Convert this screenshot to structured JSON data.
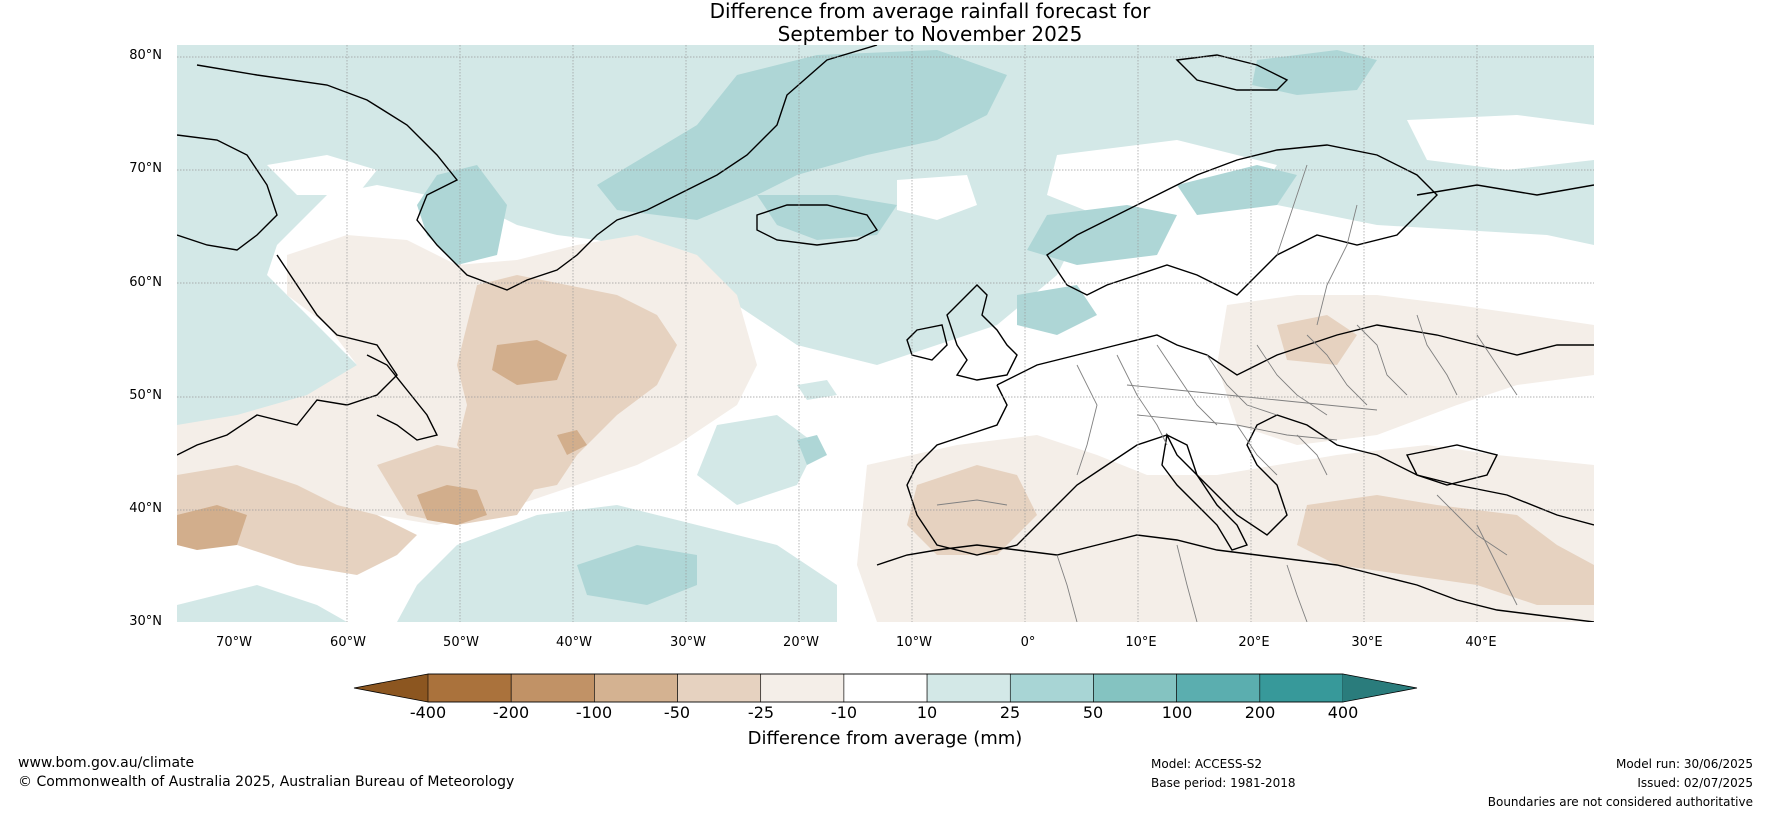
{
  "title": {
    "line1": "Difference from average rainfall forecast for",
    "line2": "September to November 2025"
  },
  "map": {
    "lat_labels": [
      "80°N",
      "70°N",
      "60°N",
      "50°N",
      "40°N",
      "30°N"
    ],
    "lon_labels": [
      "70°W",
      "60°W",
      "50°W",
      "40°W",
      "30°W",
      "20°W",
      "10°W",
      "0°",
      "10°E",
      "20°E",
      "30°E",
      "40°E"
    ],
    "colors": {
      "dry_strong": "#d2ae8c",
      "dry_moderate": "#e6d2c0",
      "dry_light": "#f4eee8",
      "wet_light": "#d3e8e7",
      "wet_moderate": "#aed6d6",
      "land_outline": "#000000",
      "border": "#808080",
      "grid": "#999999"
    }
  },
  "colorbar": {
    "ticks": [
      "-400",
      "-200",
      "-100",
      "-50",
      "-25",
      "-10",
      "10",
      "25",
      "50",
      "100",
      "200",
      "400"
    ],
    "colors": [
      "#8c5620",
      "#aa723c",
      "#c19266",
      "#d4b291",
      "#e6d2c0",
      "#f4eee8",
      "#ffffff",
      "#d3e8e7",
      "#a8d5d5",
      "#84c3c1",
      "#5baeaf",
      "#37999a",
      "#2a7c7c"
    ],
    "label": "Difference from average (mm)"
  },
  "footer": {
    "website": "www.bom.gov.au/climate",
    "copyright": "© Commonwealth of Australia 2025, Australian Bureau of Meteorology",
    "model": "Model: ACCESS-S2",
    "base_period": "Base period: 1981-2018",
    "model_run": "Model run: 30/06/2025",
    "issued": "Issued: 02/07/2025",
    "disclaimer": "Boundaries are not considered authoritative"
  }
}
